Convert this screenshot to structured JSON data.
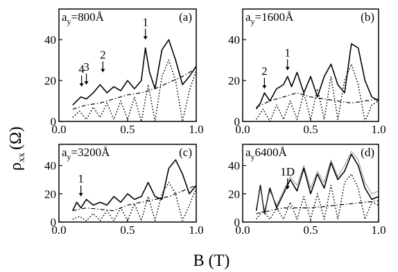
{
  "figure": {
    "ylabel_main": "ρ",
    "ylabel_sub": "xx",
    "ylabel_unit": "(Ω)",
    "xlabel": "B (T)"
  },
  "chart_data": [
    {
      "type": "line",
      "panel": "(a)",
      "param_label": "a",
      "param_sub": "y",
      "param_value": "=800Å",
      "xlim": [
        0,
        1.0
      ],
      "ylim": [
        0,
        55
      ],
      "xticks": [
        "0.0",
        "0.5",
        "1.0"
      ],
      "yticks": [
        "0",
        "20",
        "40"
      ],
      "annotations": [
        {
          "text": "1",
          "x": 0.63,
          "y": 42
        },
        {
          "text": "2",
          "x": 0.32,
          "y": 26
        },
        {
          "text": "3",
          "x": 0.2,
          "y": 20
        },
        {
          "text": "4",
          "x": 0.165,
          "y": 19
        }
      ],
      "series": [
        {
          "style": "solid",
          "x": [
            0.1,
            0.13,
            0.16,
            0.2,
            0.25,
            0.3,
            0.35,
            0.4,
            0.45,
            0.5,
            0.55,
            0.6,
            0.63,
            0.66,
            0.7,
            0.75,
            0.8,
            0.85,
            0.9,
            0.95,
            1.0
          ],
          "y": [
            8,
            10,
            12,
            11,
            14,
            18,
            14,
            17,
            15,
            20,
            16,
            20,
            36,
            24,
            16,
            35,
            40,
            30,
            18,
            22,
            27
          ]
        },
        {
          "style": "dotted",
          "x": [
            0.1,
            0.15,
            0.2,
            0.25,
            0.3,
            0.35,
            0.4,
            0.45,
            0.5,
            0.55,
            0.6,
            0.65,
            0.7,
            0.75,
            0.8,
            0.85,
            0.9,
            0.95,
            1.0
          ],
          "y": [
            2,
            5,
            1,
            7,
            2,
            9,
            1,
            10,
            1,
            12,
            0,
            18,
            0,
            22,
            30,
            20,
            0,
            15,
            25
          ]
        },
        {
          "style": "dashdot",
          "x": [
            0.1,
            0.2,
            0.3,
            0.4,
            0.5,
            0.6,
            0.7,
            0.8,
            0.9,
            1.0
          ],
          "y": [
            6,
            8,
            9,
            11,
            13,
            14,
            16,
            19,
            22,
            26
          ]
        }
      ]
    },
    {
      "type": "line",
      "panel": "(b)",
      "param_label": "a",
      "param_sub": "y",
      "param_value": "=1600Å",
      "xlim": [
        0,
        1.0
      ],
      "ylim": [
        0,
        55
      ],
      "xticks": [
        "0.0",
        "0.5",
        "1.0"
      ],
      "yticks": [
        "0",
        "20",
        "40"
      ],
      "annotations": [
        {
          "text": "1",
          "x": 0.33,
          "y": 27
        },
        {
          "text": "2",
          "x": 0.16,
          "y": 18
        }
      ],
      "series": [
        {
          "style": "solid",
          "x": [
            0.1,
            0.13,
            0.16,
            0.2,
            0.25,
            0.3,
            0.33,
            0.36,
            0.4,
            0.45,
            0.5,
            0.55,
            0.6,
            0.65,
            0.7,
            0.75,
            0.8,
            0.85,
            0.9,
            0.95,
            1.0
          ],
          "y": [
            6,
            9,
            14,
            10,
            16,
            18,
            22,
            17,
            24,
            14,
            22,
            12,
            22,
            28,
            18,
            14,
            38,
            36,
            20,
            12,
            10
          ]
        },
        {
          "style": "dotted",
          "x": [
            0.1,
            0.15,
            0.2,
            0.25,
            0.3,
            0.35,
            0.4,
            0.45,
            0.5,
            0.55,
            0.6,
            0.65,
            0.7,
            0.75,
            0.8,
            0.85,
            0.9,
            0.95,
            1.0
          ],
          "y": [
            1,
            6,
            0,
            8,
            1,
            10,
            1,
            14,
            1,
            16,
            1,
            22,
            1,
            20,
            28,
            18,
            0,
            8,
            10
          ]
        },
        {
          "style": "dashdot",
          "x": [
            0.1,
            0.2,
            0.3,
            0.4,
            0.5,
            0.6,
            0.7,
            0.8,
            0.9,
            1.0
          ],
          "y": [
            7,
            10,
            12,
            14,
            12,
            11,
            10,
            9,
            10,
            11
          ]
        }
      ]
    },
    {
      "type": "line",
      "panel": "(c)",
      "param_label": "a",
      "param_sub": "y",
      "param_value": "=3200Å",
      "xlim": [
        0,
        1.0
      ],
      "ylim": [
        0,
        55
      ],
      "xticks": [
        "0.0",
        "0.5",
        "1.0"
      ],
      "yticks": [
        "0",
        "20",
        "40"
      ],
      "annotations": [
        {
          "text": "1",
          "x": 0.16,
          "y": 21
        }
      ],
      "series": [
        {
          "style": "solid",
          "x": [
            0.1,
            0.13,
            0.16,
            0.2,
            0.25,
            0.3,
            0.35,
            0.4,
            0.45,
            0.5,
            0.55,
            0.6,
            0.65,
            0.7,
            0.75,
            0.8,
            0.85,
            0.9,
            0.95,
            1.0
          ],
          "y": [
            8,
            14,
            10,
            16,
            12,
            14,
            12,
            18,
            14,
            20,
            16,
            18,
            28,
            18,
            16,
            38,
            44,
            34,
            20,
            26
          ]
        },
        {
          "style": "dotted",
          "x": [
            0.1,
            0.15,
            0.2,
            0.25,
            0.3,
            0.35,
            0.4,
            0.45,
            0.5,
            0.55,
            0.6,
            0.65,
            0.7,
            0.75,
            0.8,
            0.85,
            0.9,
            0.95,
            1.0
          ],
          "y": [
            2,
            4,
            1,
            6,
            1,
            8,
            1,
            10,
            1,
            13,
            1,
            18,
            1,
            20,
            28,
            20,
            1,
            12,
            24
          ]
        },
        {
          "style": "dashdot",
          "x": [
            0.1,
            0.2,
            0.3,
            0.4,
            0.5,
            0.6,
            0.7,
            0.8,
            0.9,
            1.0
          ],
          "y": [
            8,
            10,
            9,
            8,
            12,
            14,
            16,
            18,
            22,
            26
          ]
        }
      ]
    },
    {
      "type": "line",
      "panel": "(d)",
      "param_label": "a",
      "param_sub": "y",
      "param_value": "6400Å",
      "xlim": [
        0,
        1.0
      ],
      "ylim": [
        0,
        55
      ],
      "xticks": [
        "0.0",
        "0.5",
        "1.0"
      ],
      "yticks": [
        "0",
        "20",
        "40"
      ],
      "annotations": [
        {
          "text": "1D",
          "x": 0.33,
          "y": 26
        }
      ],
      "series": [
        {
          "style": "solid",
          "x": [
            0.1,
            0.13,
            0.16,
            0.2,
            0.25,
            0.3,
            0.35,
            0.4,
            0.45,
            0.5,
            0.55,
            0.6,
            0.65,
            0.7,
            0.75,
            0.8,
            0.85,
            0.9,
            0.95,
            1.0
          ],
          "y": [
            8,
            26,
            6,
            24,
            10,
            20,
            30,
            22,
            38,
            20,
            34,
            24,
            42,
            30,
            36,
            48,
            40,
            24,
            16,
            18
          ]
        },
        {
          "style": "thin",
          "x": [
            0.1,
            0.13,
            0.16,
            0.2,
            0.25,
            0.3,
            0.35,
            0.4,
            0.45,
            0.5,
            0.55,
            0.6,
            0.65,
            0.7,
            0.75,
            0.8,
            0.85,
            0.9,
            0.95,
            1.0
          ],
          "y": [
            10,
            24,
            8,
            22,
            12,
            22,
            32,
            26,
            40,
            24,
            36,
            28,
            44,
            32,
            40,
            50,
            44,
            28,
            20,
            22
          ]
        },
        {
          "style": "dotted",
          "x": [
            0.1,
            0.15,
            0.2,
            0.25,
            0.3,
            0.35,
            0.4,
            0.45,
            0.5,
            0.55,
            0.6,
            0.65,
            0.7,
            0.75,
            0.8,
            0.85,
            0.9,
            0.95,
            1.0
          ],
          "y": [
            2,
            8,
            2,
            10,
            2,
            14,
            2,
            18,
            2,
            20,
            2,
            26,
            2,
            28,
            34,
            24,
            2,
            14,
            12
          ]
        },
        {
          "style": "dashdot",
          "x": [
            0.1,
            0.2,
            0.3,
            0.4,
            0.5,
            0.6,
            0.7,
            0.8,
            0.9,
            1.0
          ],
          "y": [
            6,
            8,
            10,
            10,
            10,
            11,
            12,
            13,
            14,
            15
          ]
        }
      ]
    }
  ]
}
